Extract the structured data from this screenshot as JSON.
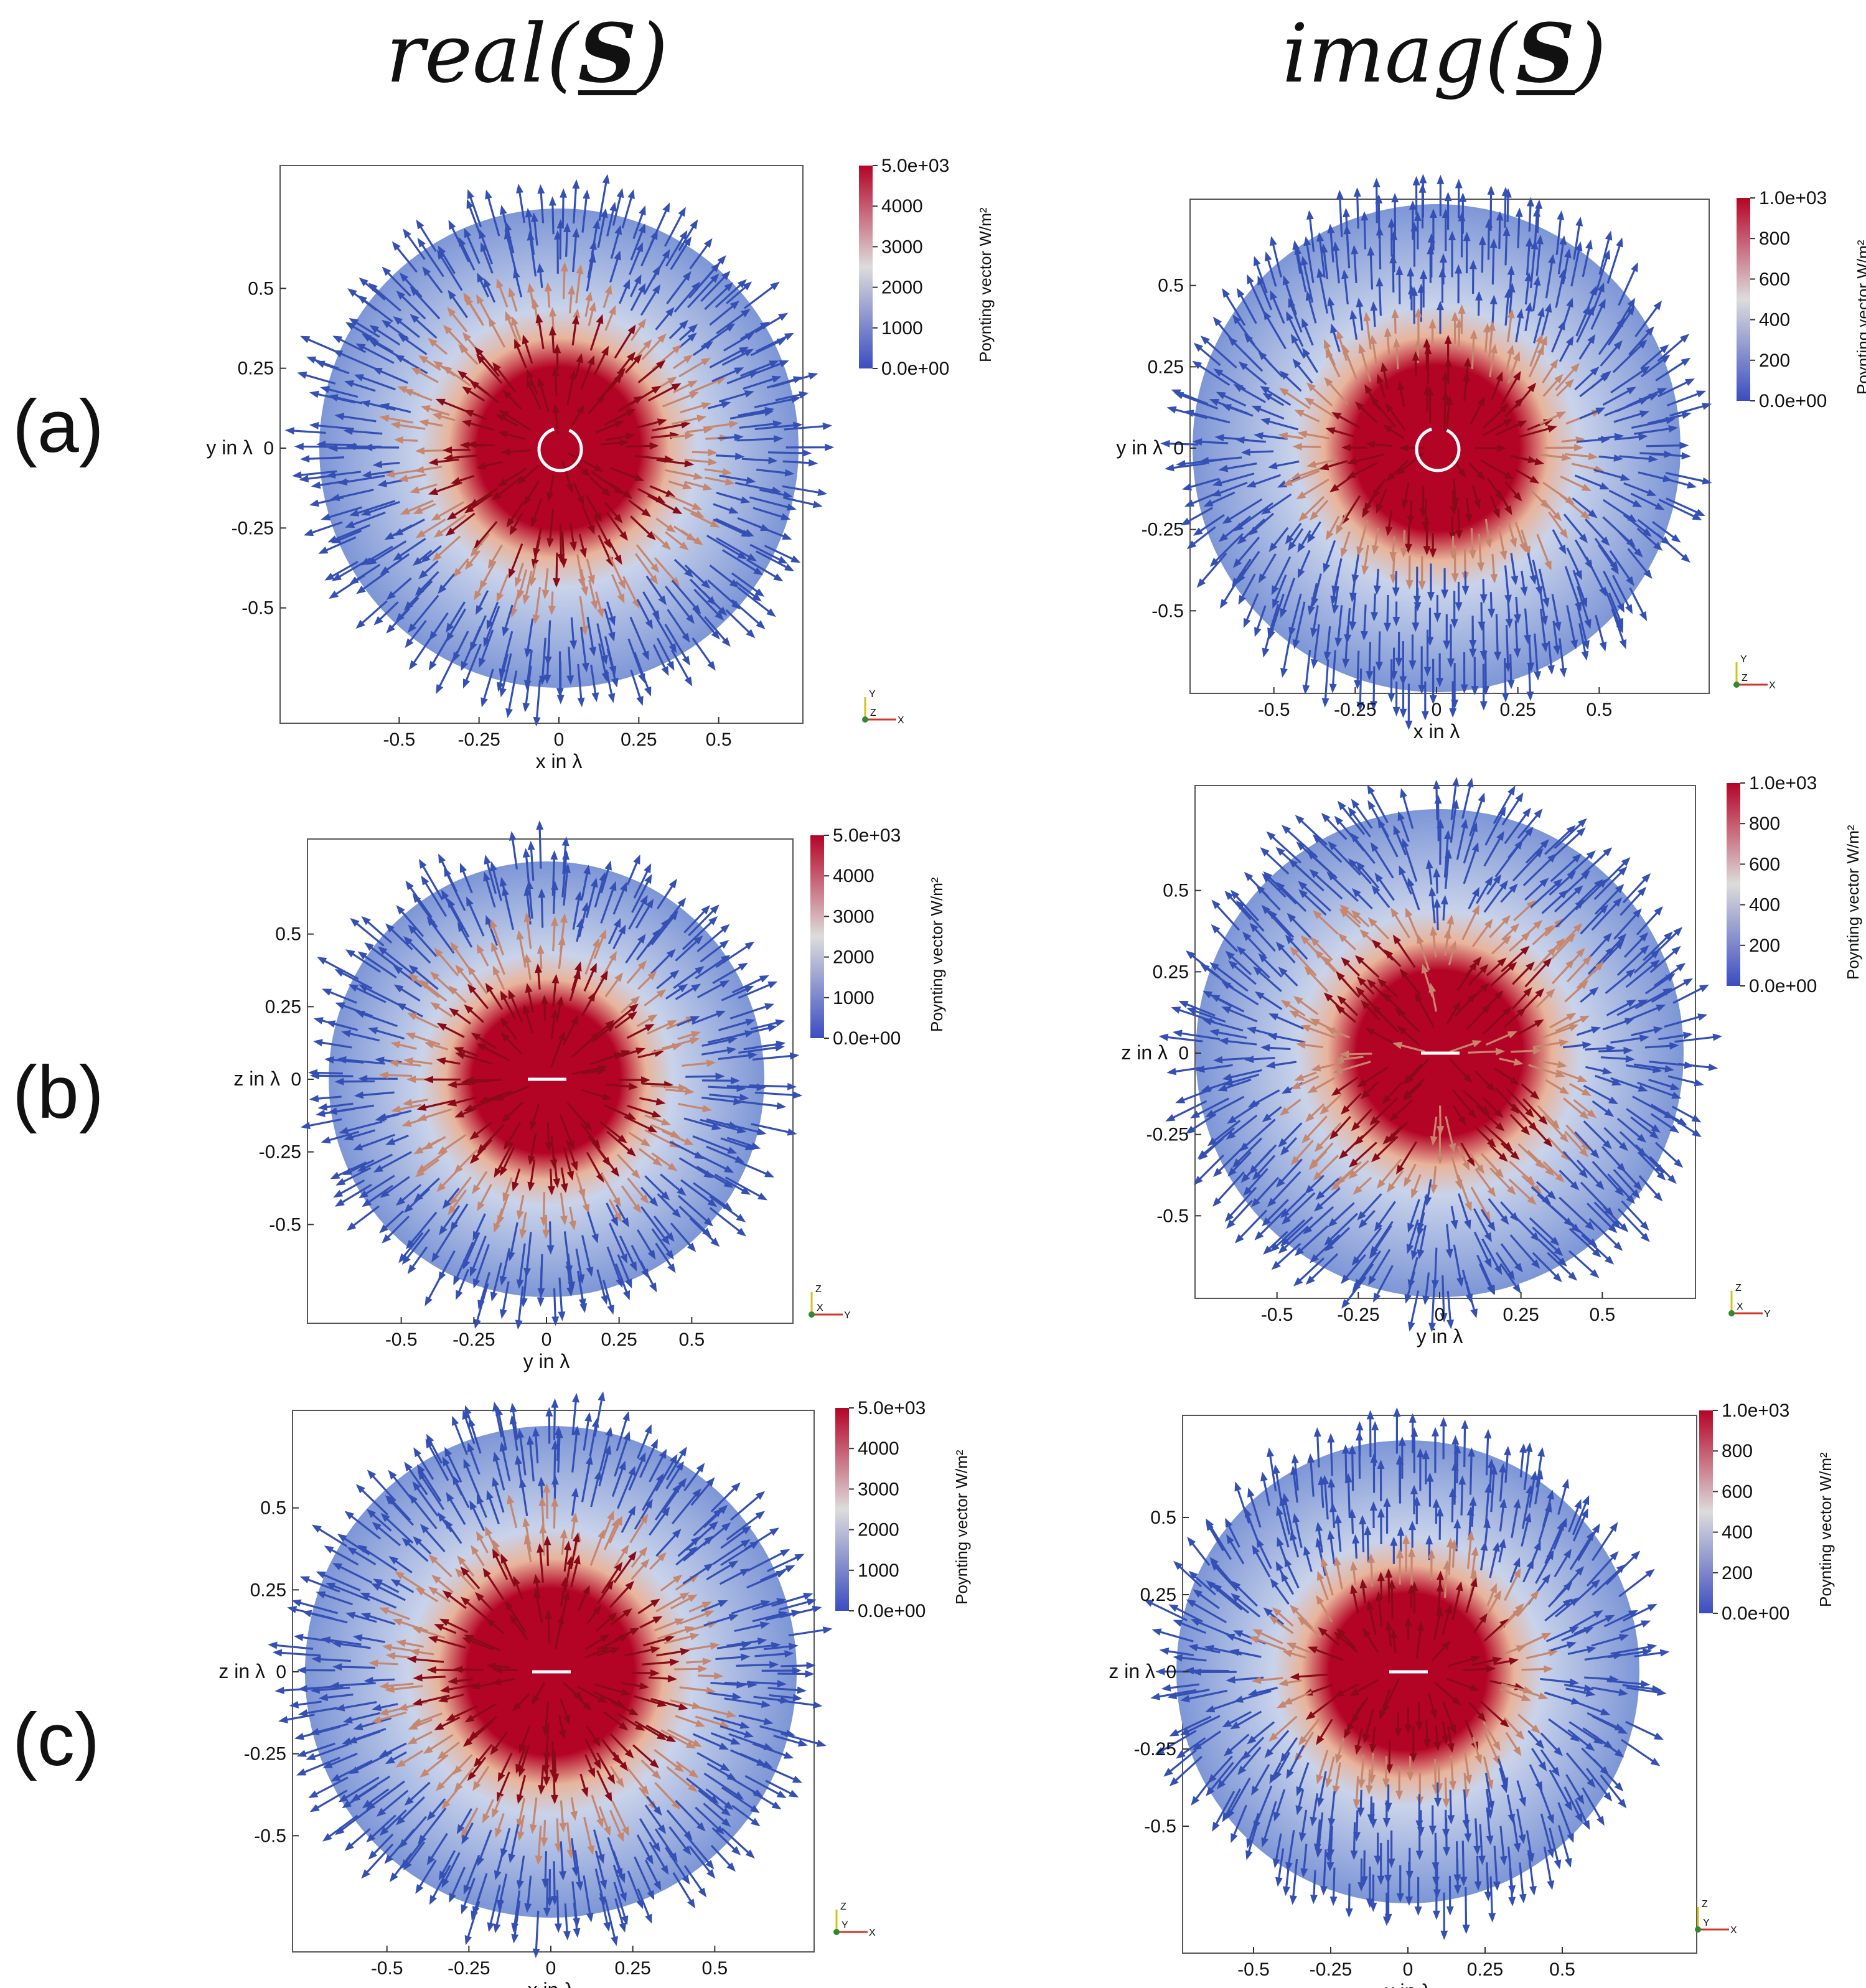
{
  "titles": {
    "left": {
      "prefix": "real(",
      "symbol": "S",
      "suffix": ")"
    },
    "right": {
      "prefix": "imag(",
      "symbol": "S",
      "suffix": ")"
    }
  },
  "rows": [
    {
      "label": "(a)"
    },
    {
      "label": "(b)"
    },
    {
      "label": "(c)"
    }
  ],
  "colorbar": {
    "title": "Poynting vector W/m²",
    "colors": {
      "low": "#3b4cc0",
      "mid": "#dddcdc",
      "high": "#b40426"
    }
  },
  "panels": [
    {
      "id": "a-real",
      "xlabel": "x in λ",
      "ylabel": "y in λ",
      "xticks": [
        "-0.5",
        "-0.25",
        "0",
        "0.25",
        "0.5"
      ],
      "yticks": [
        "0.5",
        "0.25",
        "0",
        "-0.25",
        "-0.5"
      ],
      "cb_ticks": [
        "5.0e+03",
        "4000",
        "3000",
        "2000",
        "1000",
        "0.0e+00"
      ],
      "triad": {
        "up": "Y",
        "right": "X",
        "center": "Z"
      },
      "pattern": "radial",
      "source": "ring"
    },
    {
      "id": "a-imag",
      "xlabel": "x in λ",
      "ylabel": "y in λ",
      "xticks": [
        "-0.5",
        "-0.25",
        "0",
        "0.25",
        "0.5"
      ],
      "yticks": [
        "0.5",
        "0.25",
        "0",
        "-0.25",
        "-0.5"
      ],
      "cb_ticks": [
        "1.0e+03",
        "800",
        "600",
        "400",
        "200",
        "0.0e+00"
      ],
      "triad": {
        "up": "Y",
        "right": "X",
        "center": "Z"
      },
      "pattern": "dipole-x",
      "source": "ring"
    },
    {
      "id": "b-real",
      "xlabel": "y in λ",
      "ylabel": "z in λ",
      "xticks": [
        "-0.5",
        "-0.25",
        "0",
        "0.25",
        "0.5"
      ],
      "yticks": [
        "0.5",
        "0.25",
        "0",
        "-0.25",
        "-0.5"
      ],
      "cb_ticks": [
        "5.0e+03",
        "4000",
        "3000",
        "2000",
        "1000",
        "0.0e+00"
      ],
      "triad": {
        "up": "Z",
        "right": "Y",
        "center": "X"
      },
      "pattern": "radial",
      "source": "line"
    },
    {
      "id": "b-imag",
      "xlabel": "y in λ",
      "ylabel": "z in λ",
      "xticks": [
        "-0.5",
        "-0.25",
        "0",
        "0.25",
        "0.5"
      ],
      "yticks": [
        "0.5",
        "0.25",
        "0",
        "-0.25",
        "-0.5"
      ],
      "cb_ticks": [
        "1.0e+03",
        "800",
        "600",
        "400",
        "200",
        "0.0e+00"
      ],
      "triad": {
        "up": "Z",
        "right": "Y",
        "center": "X"
      },
      "pattern": "quad",
      "source": "line"
    },
    {
      "id": "c-real",
      "xlabel": "x in λ",
      "ylabel": "z in λ",
      "xticks": [
        "-0.5",
        "-0.25",
        "0",
        "0.25",
        "0.5"
      ],
      "yticks": [
        "0.5",
        "0.25",
        "0",
        "-0.25",
        "-0.5"
      ],
      "cb_ticks": [
        "5.0e+03",
        "4000",
        "3000",
        "2000",
        "1000",
        "0.0e+00"
      ],
      "triad": {
        "up": "Z",
        "right": "X",
        "center": "Y"
      },
      "pattern": "radial",
      "source": "line"
    },
    {
      "id": "c-imag",
      "xlabel": "x in λ",
      "ylabel": "z in λ",
      "xticks": [
        "-0.5",
        "-0.25",
        "0",
        "0.25",
        "0.5"
      ],
      "yticks": [
        "0.5",
        "0.25",
        "0",
        "-0.25",
        "-0.5"
      ],
      "cb_ticks": [
        "1.0e+03",
        "800",
        "600",
        "400",
        "200",
        "0.0e+00"
      ],
      "triad": {
        "up": "Z",
        "right": "X",
        "center": "Y"
      },
      "pattern": "dipole-x",
      "source": "line"
    }
  ]
}
